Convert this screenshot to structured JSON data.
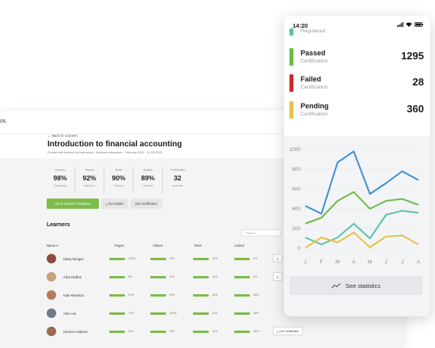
{
  "desktop": {
    "logo_text": "os",
    "back_link": "Back to courses",
    "course_title": "Introduction to financial accounting",
    "course_meta": "Course with lectures by instructors · Business education · February 2020 · 31.03.2020",
    "stats": [
      {
        "label": "Lessons",
        "value": "98",
        "unit": "%",
        "sub": "Completed"
      },
      {
        "label": "Videos",
        "value": "92",
        "unit": "%",
        "sub": "Watched"
      },
      {
        "label": "Tests",
        "value": "90",
        "unit": "%",
        "sub": "Passed"
      },
      {
        "label": "Audios",
        "value": "89",
        "unit": "%",
        "sub": "Listened"
      },
      {
        "label": "Certificates",
        "value": "32",
        "unit": "",
        "sub": "Awarded"
      }
    ],
    "actions": {
      "primary": "Go to learner's statistics",
      "report": "Get report",
      "certificates": "Get certificates"
    },
    "learners_title": "Learners",
    "search_placeholder": "Search",
    "columns": {
      "name": "Name ▾",
      "pages": "Pages",
      "videos": "Videos",
      "tests": "Tests",
      "audios": "Audios"
    },
    "learners": [
      {
        "name": "Daisy Morgan",
        "pages": "100%",
        "videos": "13%",
        "tests": "12%",
        "audios": "4%",
        "avatar_color": "#8e4a3c"
      },
      {
        "name": "Alice Rollins",
        "pages": "9%",
        "videos": "11%",
        "tests": "12%",
        "audios": "4%",
        "avatar_color": "#c9a07c"
      },
      {
        "name": "Kate Morrison",
        "pages": "91%",
        "videos": "10%",
        "tests": "15%",
        "audios": "45%",
        "avatar_color": "#b57b5a"
      },
      {
        "name": "Alex Lee",
        "pages": "71%",
        "videos": "100%",
        "tests": "11%",
        "audios": "16%",
        "avatar_color": "#6d7a8a"
      },
      {
        "name": "Carmen Valence",
        "pages": "41%",
        "videos": "13%",
        "tests": "10%",
        "audios": "16%",
        "avatar_color": "#9c6a4e"
      }
    ],
    "row_action": "Get certificate"
  },
  "phone": {
    "time": "14:20",
    "certifications": [
      {
        "name": "",
        "sub": "Registered",
        "count": "",
        "color": "#5ec1a8"
      },
      {
        "name": "Passed",
        "sub": "Certification",
        "count": "1295",
        "color": "#6cbb49"
      },
      {
        "name": "Failed",
        "sub": "Certification",
        "count": "28",
        "color": "#cc2b2b"
      },
      {
        "name": "Pending",
        "sub": "Certification",
        "count": "360",
        "color": "#e4c24a"
      }
    ],
    "see_statistics": "See statistics"
  },
  "chart_data": {
    "type": "line",
    "categories": [
      "J",
      "F",
      "M",
      "A",
      "M",
      "J",
      "J",
      "A"
    ],
    "ylim": [
      0,
      1000
    ],
    "yticks": [
      "0",
      "200",
      "400",
      "600",
      "800",
      "1000"
    ],
    "grid": true,
    "series": [
      {
        "color": "#3f8fd2",
        "values": [
          430,
          350,
          870,
          980,
          550,
          660,
          780,
          690
        ]
      },
      {
        "color": "#6cbb49",
        "values": [
          250,
          310,
          480,
          570,
          400,
          480,
          500,
          440
        ]
      },
      {
        "color": "#5ec1a8",
        "values": [
          110,
          40,
          110,
          250,
          100,
          340,
          380,
          360
        ]
      },
      {
        "color": "#e4c24a",
        "values": [
          5,
          110,
          60,
          160,
          10,
          120,
          130,
          40
        ]
      }
    ]
  }
}
